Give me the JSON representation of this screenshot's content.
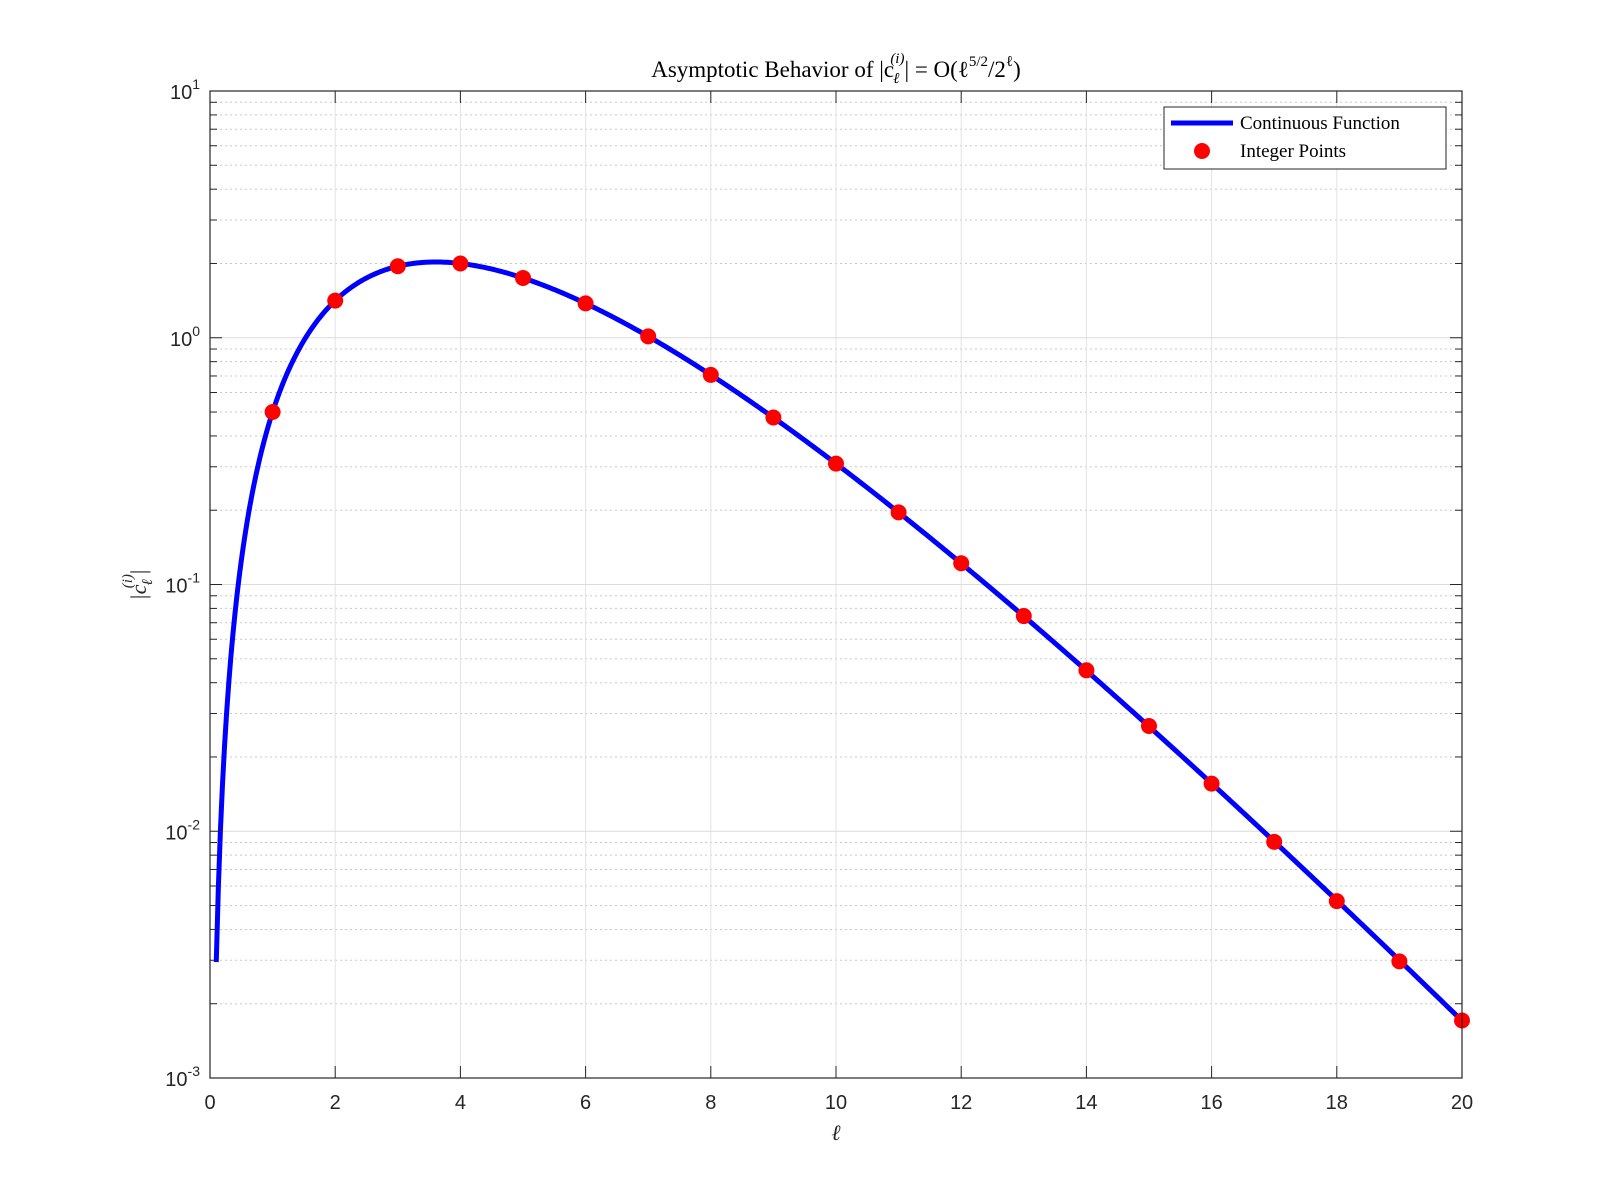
{
  "chart_data": {
    "type": "line",
    "title": {
      "prefix": "Asymptotic Behavior of |c",
      "sub": "ℓ",
      "sup": "(i)",
      "middle": "| = O(ℓ",
      "sup2": "5/2",
      "middle2": "/2",
      "sup3": "ℓ",
      "suffix": ")"
    },
    "xlabel": "ℓ",
    "ylabel": {
      "prefix": "|c",
      "sub": "ℓ",
      "sup": "(i)",
      "suffix": "|"
    },
    "xlim": [
      0,
      20
    ],
    "ylim": [
      0.001,
      10
    ],
    "yscale": "log",
    "grid": true,
    "minor_grid": true,
    "legend_placement": "top-right",
    "x_ticks": [
      "0",
      "2",
      "4",
      "6",
      "8",
      "10",
      "12",
      "14",
      "16",
      "18",
      "20"
    ],
    "y_ticks": [
      {
        "base": "10",
        "exp": "-3"
      },
      {
        "base": "10",
        "exp": "-2"
      },
      {
        "base": "10",
        "exp": "-1"
      },
      {
        "base": "10",
        "exp": "0"
      },
      {
        "base": "10",
        "exp": "1"
      }
    ],
    "series": [
      {
        "name": "Continuous Function",
        "kind": "line",
        "color": "#0000ff",
        "x_start": 0.1,
        "x_end": 20,
        "formula": "x^(5/2) / 2^x"
      },
      {
        "name": "Integer Points",
        "kind": "markers",
        "color": "#ff0000",
        "x": [
          1,
          2,
          3,
          4,
          5,
          6,
          7,
          8,
          9,
          10,
          11,
          12,
          13,
          14,
          15,
          16,
          17,
          18,
          19,
          20
        ],
        "y": [
          0.5,
          1.414,
          1.949,
          2.0,
          1.747,
          1.378,
          1.013,
          0.707,
          0.475,
          0.309,
          0.196,
          0.122,
          0.0745,
          0.0449,
          0.0267,
          0.0156,
          0.00906,
          0.00521,
          0.00297,
          0.00171
        ]
      }
    ]
  }
}
